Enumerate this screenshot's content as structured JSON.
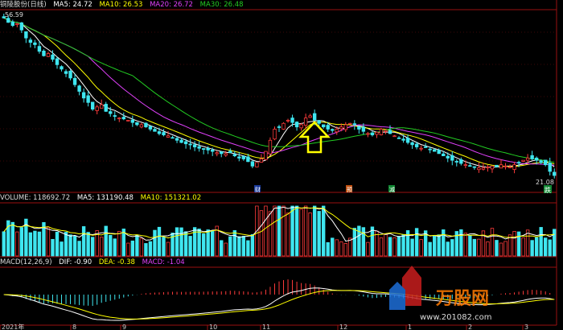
{
  "price_header": {
    "name": "铜陵股份(日线)",
    "ma5": "MA5: 24.72",
    "ma10": "MA10: 26.53",
    "ma20": "MA20: 26.72",
    "ma30": "MA30: 26.48"
  },
  "volume_header": {
    "vol": "VOLUME: 118692.72",
    "ma5": "MA5: 131190.48",
    "ma10": "MA10: 151321.02"
  },
  "macd_header": {
    "params": "MACD(12,26,9)",
    "dif": "DIF: -0.90",
    "dea": "DEA: -0.38",
    "macd": "MACD: -1.04"
  },
  "colors": {
    "up": "#ff3b3b",
    "down": "#3fe6f0",
    "ma5": "#ffffff",
    "ma10": "#ffff00",
    "ma20": "#e040fb",
    "ma30": "#22cc22",
    "grid": "#7a1010",
    "frame": "#9a1010",
    "dif": "#ffffff",
    "dea": "#ffff00"
  },
  "markers": {
    "high_label": "56.59",
    "low_label": "21.08",
    "badge_1": "财",
    "badge_2": "预",
    "badge_3": "减",
    "badge_4": "跌"
  },
  "watermark": {
    "brand": "万股网",
    "url": "www.201082.com"
  },
  "arrow_icon": "up-arrow-icon",
  "chart_data": {
    "type": "candlestick",
    "x_axis_labels": [
      "2021年",
      "8",
      "9",
      "10",
      "11",
      "12",
      "1",
      "2",
      "3"
    ],
    "price_range": [
      21.08,
      56.59
    ],
    "close_series": [
      56.5,
      55.5,
      54.8,
      55.2,
      53.8,
      52.0,
      51.0,
      50.5,
      49.0,
      48.0,
      48.5,
      47.2,
      46.0,
      45.0,
      44.0,
      43.0,
      41.5,
      40.0,
      38.5,
      37.5,
      36.0,
      36.5,
      37.0,
      35.5,
      35.0,
      34.5,
      34.0,
      33.8,
      33.5,
      33.0,
      32.5,
      32.5,
      32.0,
      31.5,
      31.0,
      30.5,
      30.2,
      30.0,
      29.5,
      29.0,
      28.5,
      28.2,
      28.0,
      27.5,
      27.2,
      27.0,
      26.8,
      26.5,
      26.2,
      26.0,
      26.0,
      26.2,
      25.5,
      25.0,
      24.8,
      24.2,
      23.2,
      24.0,
      24.8,
      26.5,
      29.0,
      31.5,
      32.0,
      32.8,
      33.5,
      33.0,
      32.0,
      32.5,
      34.0,
      34.5,
      33.5,
      32.8,
      32.0,
      31.5,
      31.2,
      31.5,
      32.0,
      32.5,
      32.8,
      32.5,
      31.5,
      31.0,
      30.5,
      30.2,
      30.8,
      31.5,
      31.2,
      30.5,
      30.0,
      29.5,
      29.0,
      28.5,
      28.0,
      27.5,
      27.2,
      27.5,
      27.0,
      26.5,
      26.0,
      25.5,
      25.0,
      24.5,
      24.2,
      23.8,
      23.5,
      23.2,
      23.0,
      22.8,
      22.8,
      23.0,
      23.2,
      23.0,
      23.5,
      23.2,
      23.0,
      23.5,
      24.0,
      24.5,
      25.0,
      24.8,
      24.5,
      24.0,
      23.5,
      22.0,
      21.08
    ],
    "volume_ma10_label": "MA10: 151321.02",
    "dif_last": -0.9,
    "dea_last": -0.38,
    "macd_last": -1.04
  }
}
